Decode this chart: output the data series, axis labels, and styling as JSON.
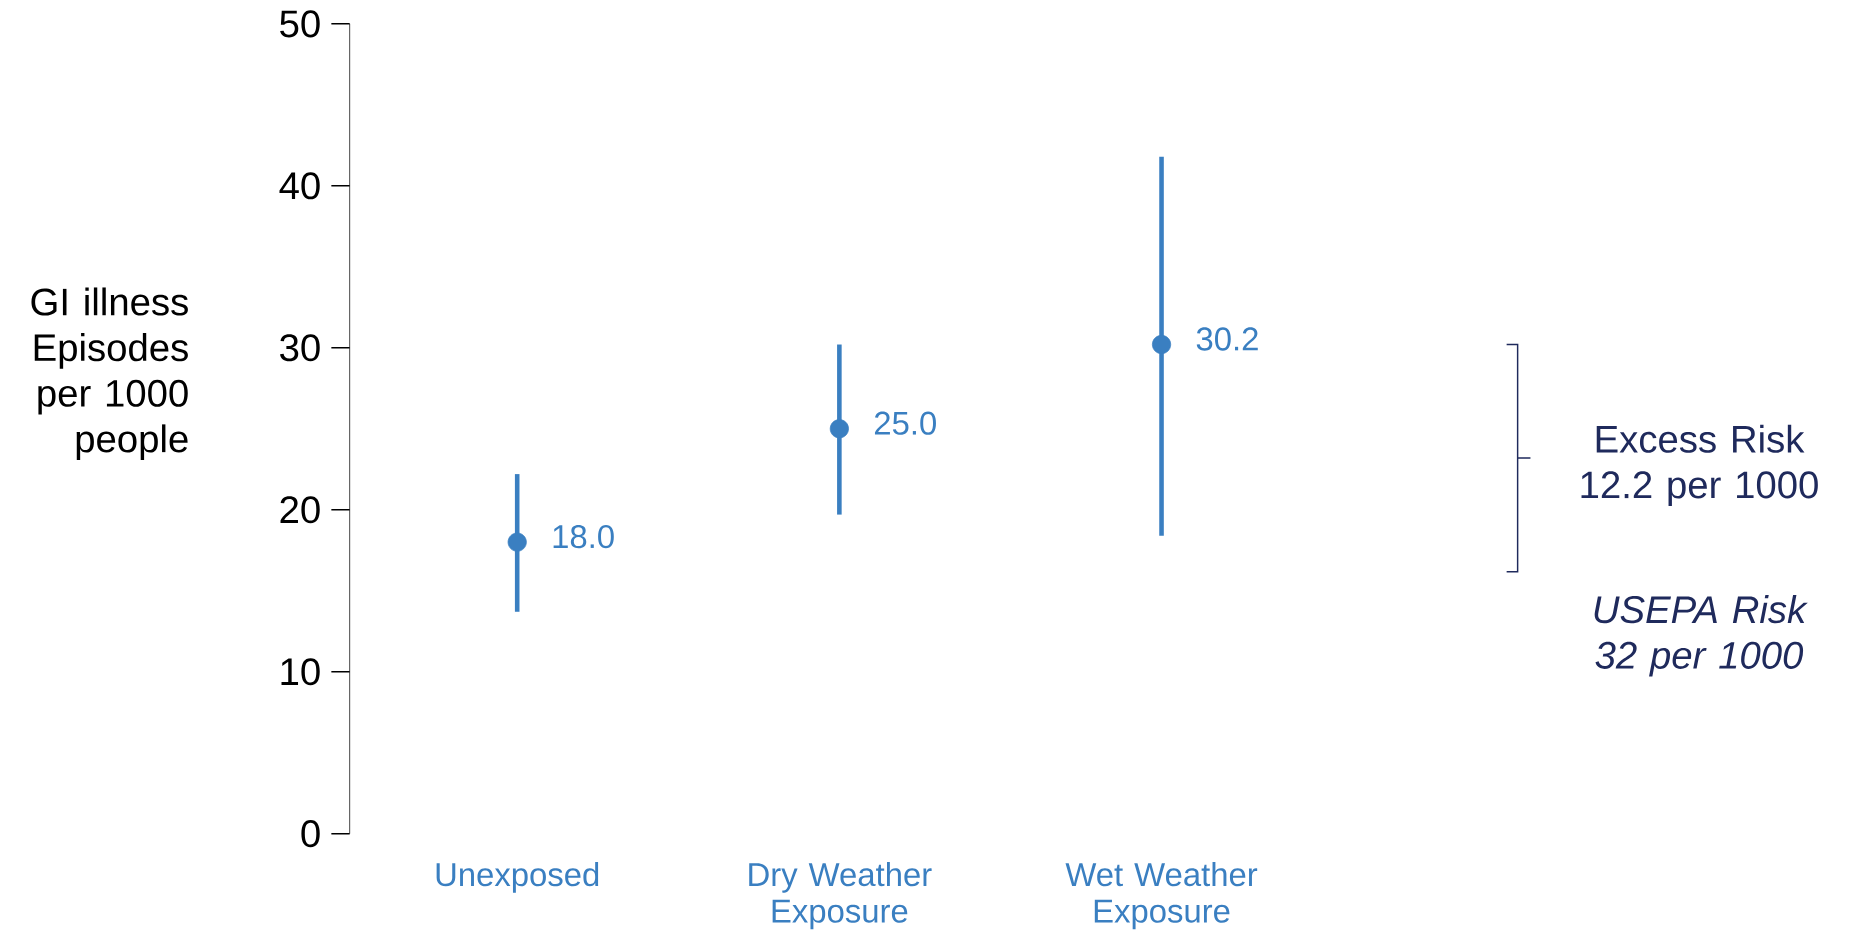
{
  "chart_data": {
    "type": "scatter",
    "ylabel": "GI illness Episodes per 1000 people",
    "categories": [
      "Unexposed",
      "Dry Weather Exposure",
      "Wet Weather Exposure"
    ],
    "values": [
      18.0,
      25.0,
      30.2
    ],
    "value_labels": [
      "18.0",
      "25.0",
      "30.2"
    ],
    "errors": [
      [
        13.7,
        22.2
      ],
      [
        19.7,
        30.2
      ],
      [
        18.4,
        41.8
      ]
    ],
    "color": "#3a7fc1",
    "marker": "circle",
    "ylim": [
      0,
      50
    ],
    "yticks": [
      0,
      10,
      20,
      30,
      40,
      50
    ],
    "annotations": [
      "Excess Risk 12.2 per 1000",
      "USEPA Risk 32 per 1000"
    ],
    "grid": false
  }
}
